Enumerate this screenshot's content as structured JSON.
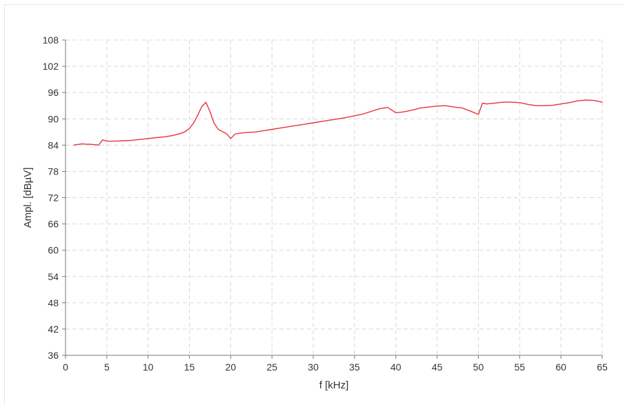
{
  "chart_data": {
    "type": "line",
    "title": "",
    "xlabel": "f [kHz]",
    "ylabel": "Ampl. [dBµV]",
    "xlim": [
      0,
      65
    ],
    "ylim": [
      36,
      108
    ],
    "xticks": [
      0,
      5,
      10,
      15,
      20,
      25,
      30,
      35,
      40,
      45,
      50,
      55,
      60,
      65
    ],
    "xtick_labels": [
      "0",
      "5",
      "10",
      "15",
      "20",
      "25",
      "30",
      "35",
      "40",
      "45",
      "50",
      "55",
      "60",
      "65"
    ],
    "yticks": [
      36,
      42,
      48,
      54,
      60,
      66,
      72,
      78,
      84,
      90,
      96,
      102,
      108
    ],
    "ytick_labels": [
      "36",
      "42",
      "48",
      "54",
      "60",
      "66",
      "72",
      "78",
      "84",
      "90",
      "96",
      "102",
      "108"
    ],
    "grid": true,
    "series": [
      {
        "color": "#e8323c",
        "x": [
          1,
          2,
          2.5,
          3,
          4,
          4.5,
          5,
          6,
          7,
          8,
          9,
          10,
          11,
          12,
          13,
          14,
          14.5,
          15,
          15.5,
          16,
          16.5,
          17,
          17.5,
          18,
          18.5,
          19,
          19.5,
          20,
          20.5,
          21,
          22,
          23,
          24,
          25,
          26,
          27,
          28,
          29,
          30,
          31,
          32,
          33,
          34,
          35,
          36,
          37,
          38,
          39,
          40,
          41,
          42,
          43,
          44,
          45,
          46,
          47,
          48,
          49,
          50,
          50.5,
          51,
          52,
          53,
          54,
          55,
          56,
          57,
          58,
          59,
          60,
          61,
          62,
          63,
          64,
          65
        ],
        "y": [
          84.0,
          84.3,
          84.2,
          84.2,
          84.0,
          85.2,
          84.9,
          84.9,
          85.0,
          85.1,
          85.3,
          85.5,
          85.7,
          85.9,
          86.2,
          86.7,
          87.1,
          87.8,
          89.0,
          90.8,
          92.8,
          93.8,
          91.6,
          89.0,
          87.6,
          87.1,
          86.6,
          85.5,
          86.5,
          86.7,
          86.9,
          87.0,
          87.3,
          87.6,
          87.9,
          88.2,
          88.5,
          88.8,
          89.1,
          89.4,
          89.7,
          90.0,
          90.3,
          90.7,
          91.1,
          91.7,
          92.3,
          92.6,
          91.4,
          91.6,
          92.0,
          92.5,
          92.7,
          92.9,
          93.0,
          92.7,
          92.5,
          91.8,
          91.0,
          93.6,
          93.4,
          93.6,
          93.8,
          93.8,
          93.7,
          93.3,
          93.0,
          93.0,
          93.1,
          93.4,
          93.7,
          94.1,
          94.3,
          94.2,
          93.8
        ]
      }
    ]
  }
}
